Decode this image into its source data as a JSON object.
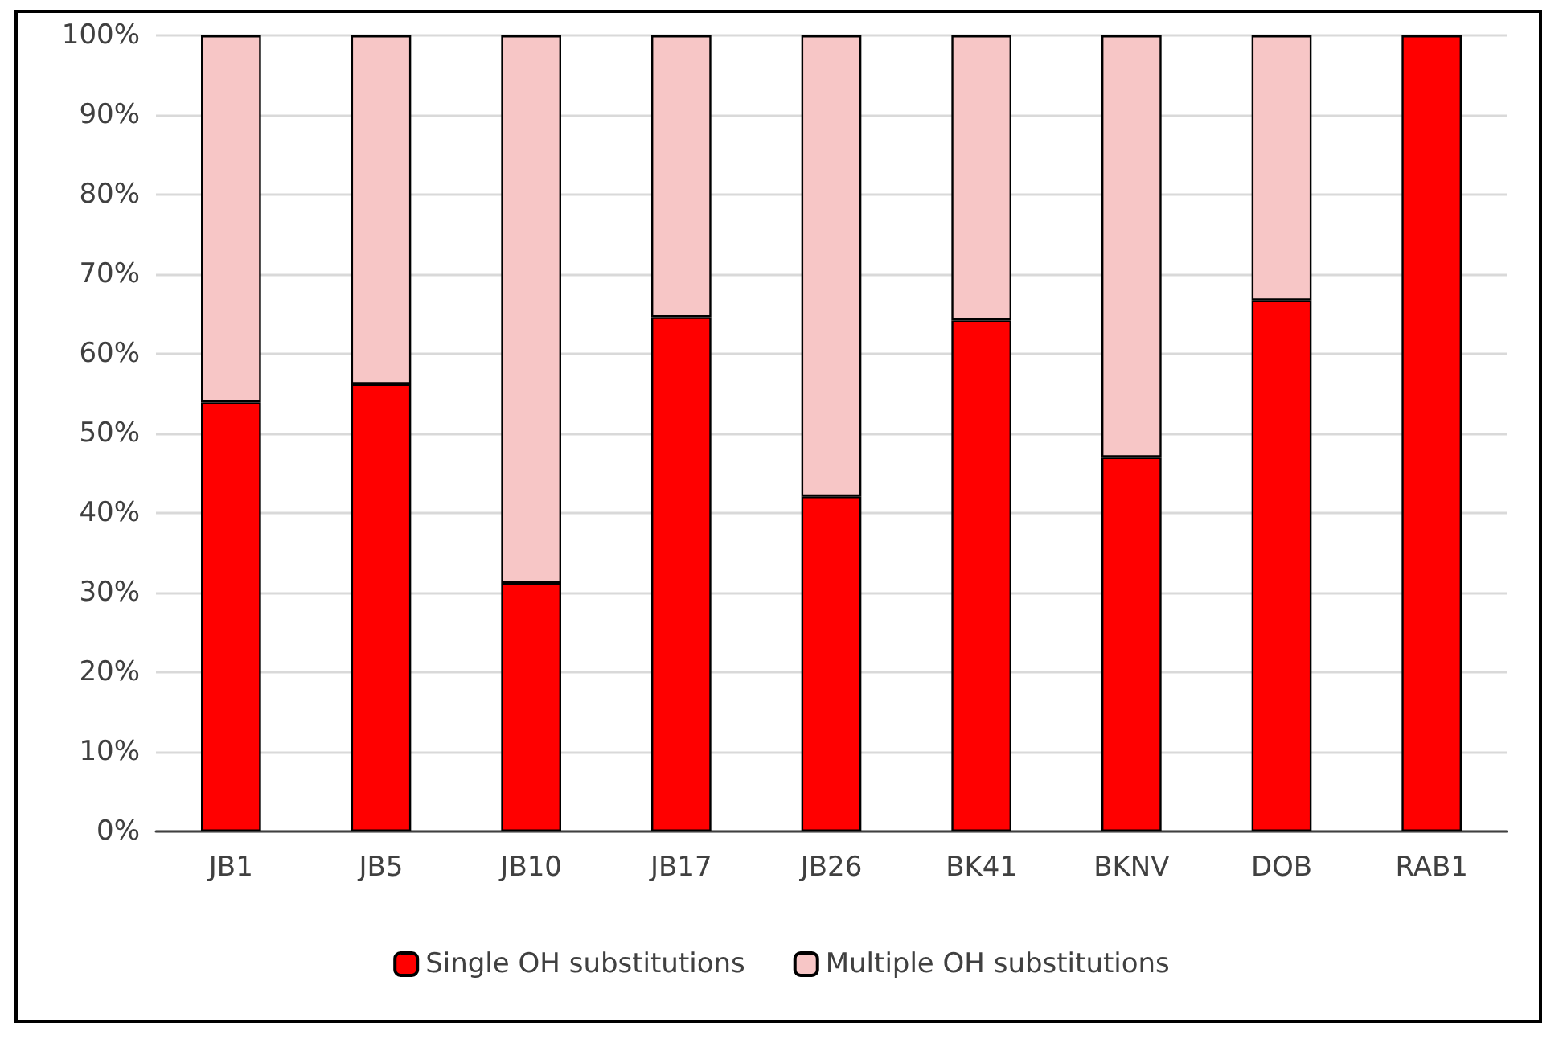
{
  "chart_data": {
    "type": "bar",
    "stacked": true,
    "categories": [
      "JB1",
      "JB5",
      "JB10",
      "JB17",
      "JB26",
      "BK41",
      "BKNV",
      "DOB",
      "RAB1"
    ],
    "series": [
      {
        "name": "Single OH substitutions",
        "color": "#ff0000",
        "values": [
          53.9,
          56.2,
          31.2,
          64.6,
          42.1,
          64.2,
          47.0,
          66.7,
          100
        ]
      },
      {
        "name": "Multiple OH substitutions",
        "color": "#f7c6c6",
        "values": [
          46.1,
          43.8,
          68.8,
          35.4,
          57.9,
          35.8,
          53.0,
          33.3,
          null
        ]
      }
    ],
    "ylim": [
      0,
      100
    ],
    "yticks": [
      {
        "value": 0,
        "label": "0%"
      },
      {
        "value": 10,
        "label": "10%"
      },
      {
        "value": 20,
        "label": "20%"
      },
      {
        "value": 30,
        "label": "30%"
      },
      {
        "value": 40,
        "label": "40%"
      },
      {
        "value": 50,
        "label": "50%"
      },
      {
        "value": 60,
        "label": "60%"
      },
      {
        "value": 70,
        "label": "70%"
      },
      {
        "value": 80,
        "label": "80%"
      },
      {
        "value": 90,
        "label": "90%"
      },
      {
        "value": 100,
        "label": "100%"
      }
    ],
    "grid": "y",
    "legend": "bottom"
  }
}
